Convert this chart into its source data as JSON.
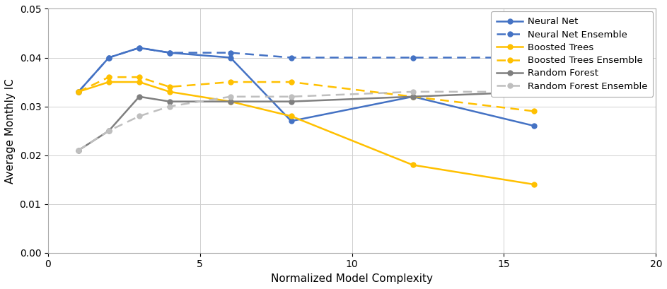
{
  "neural_net_x": [
    1,
    2,
    3,
    4,
    6,
    8,
    12,
    16
  ],
  "neural_net_y": [
    0.033,
    0.04,
    0.042,
    0.041,
    0.04,
    0.027,
    0.032,
    0.026
  ],
  "neural_net_ensemble_x": [
    1,
    2,
    3,
    4,
    6,
    8,
    12,
    16
  ],
  "neural_net_ensemble_y": [
    0.033,
    0.04,
    0.042,
    0.041,
    0.041,
    0.04,
    0.04,
    0.04
  ],
  "boosted_trees_x": [
    1,
    2,
    3,
    4,
    6,
    8,
    12,
    16
  ],
  "boosted_trees_y": [
    0.033,
    0.035,
    0.035,
    0.033,
    0.031,
    0.028,
    0.018,
    0.014
  ],
  "boosted_trees_ensemble_x": [
    1,
    2,
    3,
    4,
    6,
    8,
    12,
    16
  ],
  "boosted_trees_ensemble_y": [
    0.033,
    0.036,
    0.036,
    0.034,
    0.035,
    0.035,
    0.032,
    0.029
  ],
  "random_forest_x": [
    1,
    2,
    3,
    4,
    6,
    8,
    12,
    16
  ],
  "random_forest_y": [
    0.021,
    0.025,
    0.032,
    0.031,
    0.031,
    0.031,
    0.032,
    0.033
  ],
  "random_forest_ensemble_x": [
    1,
    2,
    3,
    4,
    6,
    8,
    12,
    16
  ],
  "random_forest_ensemble_y": [
    0.021,
    0.025,
    0.028,
    0.03,
    0.032,
    0.032,
    0.033,
    0.033
  ],
  "neural_net_color": "#4472C4",
  "boosted_trees_color": "#FFC000",
  "random_forest_color": "#7F7F7F",
  "random_forest_ensemble_color": "#BFBFBF",
  "xlabel": "Normalized Model Complexity",
  "ylabel": "Average Monthly IC",
  "xlim": [
    0,
    20
  ],
  "ylim": [
    0.0,
    0.05
  ],
  "yticks": [
    0.0,
    0.01,
    0.02,
    0.03,
    0.04,
    0.05
  ],
  "xticks": [
    0,
    5,
    10,
    15,
    20
  ],
  "legend_labels": [
    "Neural Net",
    "Neural Net Ensemble",
    "Boosted Trees",
    "Boosted Trees Ensemble",
    "Random Forest",
    "Random Forest Ensemble"
  ],
  "grid_color": "#D0D0D0",
  "background_color": "#FFFFFF",
  "marker_size": 5,
  "linewidth": 1.8
}
